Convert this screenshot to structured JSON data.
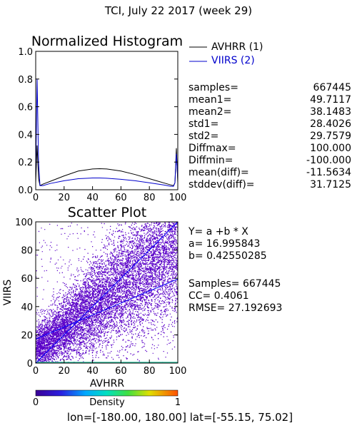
{
  "header": {
    "title": "TCI,  July 22 2017 (week 29)"
  },
  "chart_data": [
    {
      "type": "line",
      "title": "Normalized Histogram",
      "xlim": [
        0,
        100
      ],
      "ylim": [
        0,
        1
      ],
      "x_ticks": [
        "0",
        "20",
        "40",
        "60",
        "80",
        "100"
      ],
      "y_ticks": [
        "0.0",
        "0.2",
        "0.4",
        "0.6",
        "0.8",
        "1.0"
      ],
      "legend_position": "right",
      "series": [
        {
          "name": "AVHRR (1)",
          "color": "#000000",
          "x": [
            0,
            1,
            2,
            3,
            5,
            10,
            20,
            30,
            40,
            45,
            50,
            60,
            70,
            80,
            90,
            95,
            97,
            98,
            99,
            100
          ],
          "y": [
            0.05,
            0.32,
            0.08,
            0.03,
            0.04,
            0.06,
            0.1,
            0.135,
            0.15,
            0.152,
            0.15,
            0.135,
            0.11,
            0.08,
            0.05,
            0.035,
            0.03,
            0.05,
            0.3,
            0.05
          ]
        },
        {
          "name": "VIIRS (2)",
          "color": "#0000cc",
          "x": [
            0,
            1,
            2,
            3,
            5,
            10,
            20,
            30,
            40,
            45,
            50,
            60,
            70,
            80,
            90,
            95,
            97,
            98,
            99,
            100
          ],
          "y": [
            0.1,
            0.8,
            0.2,
            0.03,
            0.03,
            0.045,
            0.065,
            0.08,
            0.085,
            0.085,
            0.083,
            0.075,
            0.065,
            0.05,
            0.035,
            0.025,
            0.025,
            0.05,
            0.26,
            0.08
          ]
        }
      ]
    },
    {
      "type": "scatter",
      "title": "Scatter Plot",
      "xlabel": "AVHRR",
      "ylabel": "VIIRS",
      "xlim": [
        0,
        100
      ],
      "ylim": [
        0,
        100
      ],
      "x_ticks": [
        "0",
        "20",
        "40",
        "60",
        "80",
        "100"
      ],
      "y_ticks": [
        "0",
        "20",
        "40",
        "60",
        "80",
        "100"
      ],
      "fit_line": {
        "intercept": 16.995843,
        "slope": 0.42550285,
        "color": "#0000ff"
      },
      "identity_line": {
        "from": [
          0,
          0
        ],
        "to": [
          100,
          100
        ],
        "color": "#0000ff"
      },
      "point_color": "#5a00c8",
      "colorbar": {
        "label": "Density",
        "min": "0",
        "max": "1"
      }
    }
  ],
  "stats": {
    "labels": [
      "samples=",
      "mean1=",
      "mean2=",
      "std1=",
      "std2=",
      "Diffmax=",
      "Diffmin=",
      "mean(diff)=",
      "stddev(diff)="
    ],
    "values": [
      "667445",
      "49.7117",
      "38.1483",
      "28.4026",
      "29.7579",
      "100.000",
      "-100.000",
      "-11.5634",
      "31.7125"
    ]
  },
  "regression": {
    "equation": "Y= a +b * X",
    "a_text": "a= 16.995843",
    "b_text": "b= 0.42550285",
    "samples_text": "Samples= 667445",
    "cc_text": "CC=  0.4061",
    "rmse_text": "RMSE= 27.192693"
  },
  "footer": {
    "range_text": "lon=[-180.00, 180.00] lat=[-55.15, 75.02]"
  }
}
